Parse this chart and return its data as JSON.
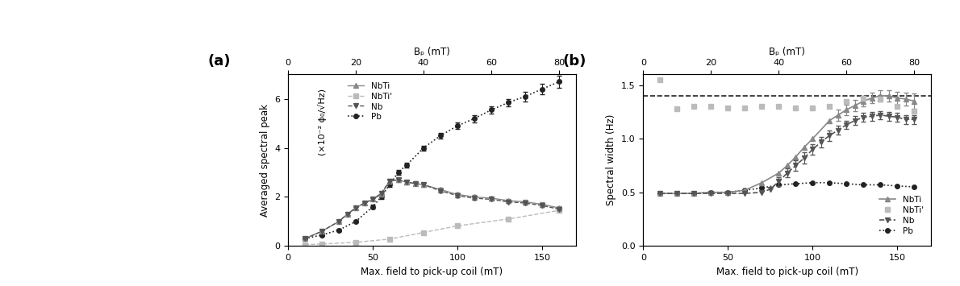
{
  "panel_a": {
    "title": "(a)",
    "xlabel": "Max. field to pick-up coil (mT)",
    "ylabel": "Averaged spectral peak",
    "ylabel2": "(×10⁻² ϕ₀/√Hz)",
    "top_xlabel": "Bₚ (mT)",
    "xlim": [
      0,
      170
    ],
    "ylim": [
      0,
      7
    ],
    "xticks": [
      0,
      50,
      100,
      150
    ],
    "yticks": [
      0,
      2,
      4,
      6
    ],
    "top_xticks": [
      0,
      20,
      40,
      60,
      80
    ],
    "NbTi": {
      "x": [
        10,
        20,
        30,
        35,
        40,
        45,
        50,
        55,
        60,
        65,
        70,
        75,
        80,
        90,
        100,
        110,
        120,
        130,
        140,
        150,
        160
      ],
      "y": [
        0.3,
        0.6,
        1.0,
        1.3,
        1.55,
        1.75,
        1.9,
        2.1,
        2.65,
        2.7,
        2.6,
        2.55,
        2.5,
        2.3,
        2.1,
        2.0,
        1.95,
        1.85,
        1.8,
        1.7,
        1.55
      ],
      "yerr": [
        0.05,
        0.05,
        0.05,
        0.05,
        0.05,
        0.05,
        0.05,
        0.05,
        0.08,
        0.08,
        0.08,
        0.08,
        0.08,
        0.07,
        0.07,
        0.07,
        0.07,
        0.07,
        0.07,
        0.07,
        0.07
      ],
      "color": "#888888",
      "marker": "^",
      "markersize": 4,
      "linestyle": "-",
      "linewidth": 1.0,
      "label": "NbTi"
    },
    "NbTip": {
      "x": [
        10,
        20,
        40,
        60,
        80,
        100,
        130,
        160
      ],
      "y": [
        0.05,
        0.08,
        0.15,
        0.28,
        0.55,
        0.82,
        1.1,
        1.45
      ],
      "color": "#bbbbbb",
      "marker": "s",
      "markersize": 5,
      "linestyle": "--",
      "linewidth": 1.0,
      "label": "NbTi'"
    },
    "Nb": {
      "x": [
        10,
        20,
        30,
        35,
        40,
        45,
        50,
        55,
        60,
        65,
        70,
        75,
        80,
        90,
        100,
        110,
        120,
        130,
        140,
        150,
        160
      ],
      "y": [
        0.3,
        0.6,
        1.0,
        1.3,
        1.55,
        1.75,
        1.9,
        2.15,
        2.65,
        2.7,
        2.6,
        2.55,
        2.5,
        2.25,
        2.05,
        1.95,
        1.9,
        1.8,
        1.75,
        1.65,
        1.5
      ],
      "yerr": [
        0.05,
        0.05,
        0.05,
        0.05,
        0.05,
        0.05,
        0.05,
        0.05,
        0.07,
        0.07,
        0.07,
        0.07,
        0.07,
        0.06,
        0.06,
        0.06,
        0.06,
        0.06,
        0.06,
        0.06,
        0.06
      ],
      "color": "#555555",
      "marker": "v",
      "markersize": 4,
      "linestyle": "--",
      "linewidth": 1.0,
      "label": "Nb"
    },
    "Pb": {
      "x": [
        10,
        20,
        30,
        40,
        50,
        55,
        60,
        65,
        70,
        80,
        90,
        100,
        110,
        120,
        130,
        140,
        150,
        160
      ],
      "y": [
        0.3,
        0.45,
        0.65,
        1.0,
        1.6,
        2.0,
        2.5,
        3.0,
        3.3,
        4.0,
        4.5,
        4.9,
        5.2,
        5.55,
        5.85,
        6.1,
        6.4,
        6.7
      ],
      "yerr": [
        0.03,
        0.03,
        0.04,
        0.05,
        0.07,
        0.08,
        0.08,
        0.09,
        0.1,
        0.1,
        0.12,
        0.13,
        0.15,
        0.15,
        0.15,
        0.2,
        0.2,
        0.25
      ],
      "color": "#222222",
      "marker": "o",
      "markersize": 4,
      "linestyle": ":",
      "linewidth": 1.2,
      "label": "Pb"
    }
  },
  "panel_b": {
    "title": "(b)",
    "xlabel": "Max. field to pick-up coil (mT)",
    "ylabel": "Spectral width (Hz)",
    "top_xlabel": "Bₚ (mT)",
    "xlim": [
      0,
      170
    ],
    "ylim": [
      0,
      1.6
    ],
    "xticks": [
      0,
      50,
      100,
      150
    ],
    "yticks": [
      0,
      0.5,
      1.0,
      1.5
    ],
    "top_xticks": [
      0,
      20,
      40,
      60,
      80
    ],
    "dashed_line_y": 1.4,
    "NbTi": {
      "x": [
        10,
        20,
        30,
        40,
        50,
        60,
        70,
        80,
        85,
        90,
        95,
        100,
        110,
        115,
        120,
        125,
        130,
        135,
        140,
        145,
        150,
        155,
        160
      ],
      "y": [
        0.49,
        0.49,
        0.49,
        0.5,
        0.5,
        0.52,
        0.59,
        0.68,
        0.75,
        0.83,
        0.92,
        1.0,
        1.17,
        1.22,
        1.27,
        1.31,
        1.35,
        1.38,
        1.4,
        1.4,
        1.38,
        1.37,
        1.35
      ],
      "yerr_x": [
        115,
        120,
        125,
        130,
        135,
        140,
        145,
        150,
        155,
        160
      ],
      "yerr": [
        0.05,
        0.05,
        0.05,
        0.05,
        0.05,
        0.05,
        0.05,
        0.06,
        0.06,
        0.07
      ],
      "color": "#888888",
      "marker": "^",
      "markersize": 4,
      "linestyle": "-",
      "linewidth": 1.2,
      "label": "NbTi"
    },
    "NbTip": {
      "x": [
        10,
        20,
        30,
        40,
        50,
        60,
        70,
        80,
        90,
        100,
        110,
        120,
        130,
        140,
        150,
        160
      ],
      "y": [
        1.55,
        1.28,
        1.3,
        1.3,
        1.29,
        1.29,
        1.3,
        1.3,
        1.29,
        1.29,
        1.3,
        1.35,
        1.38,
        1.37,
        1.3,
        1.26
      ],
      "color": "#bbbbbb",
      "marker": "s",
      "markersize": 5,
      "linestyle": "None",
      "linewidth": 0,
      "label": "NbTi'"
    },
    "Nb": {
      "x": [
        10,
        20,
        30,
        40,
        50,
        60,
        70,
        75,
        80,
        85,
        90,
        95,
        100,
        105,
        110,
        115,
        120,
        125,
        130,
        135,
        140,
        145,
        150,
        155,
        160
      ],
      "y": [
        0.49,
        0.49,
        0.49,
        0.49,
        0.49,
        0.49,
        0.5,
        0.53,
        0.6,
        0.68,
        0.75,
        0.82,
        0.9,
        0.97,
        1.03,
        1.08,
        1.13,
        1.17,
        1.2,
        1.21,
        1.22,
        1.21,
        1.2,
        1.18,
        1.18
      ],
      "yerr_x": [
        80,
        85,
        90,
        95,
        100,
        105,
        110,
        115,
        120,
        125,
        130,
        135,
        140,
        145,
        150,
        155,
        160
      ],
      "yerr": [
        0.04,
        0.04,
        0.05,
        0.05,
        0.05,
        0.05,
        0.05,
        0.04,
        0.04,
        0.04,
        0.04,
        0.04,
        0.04,
        0.04,
        0.04,
        0.04,
        0.04
      ],
      "color": "#555555",
      "marker": "v",
      "markersize": 4,
      "linestyle": "--",
      "linewidth": 1.2,
      "label": "Nb"
    },
    "Pb": {
      "x": [
        10,
        20,
        30,
        40,
        50,
        60,
        70,
        80,
        90,
        100,
        110,
        120,
        130,
        140,
        150,
        160
      ],
      "y": [
        0.49,
        0.49,
        0.49,
        0.5,
        0.5,
        0.52,
        0.54,
        0.57,
        0.58,
        0.59,
        0.59,
        0.58,
        0.57,
        0.57,
        0.56,
        0.55
      ],
      "color": "#222222",
      "marker": "o",
      "markersize": 4,
      "linestyle": ":",
      "linewidth": 1.2,
      "label": "Pb"
    }
  }
}
